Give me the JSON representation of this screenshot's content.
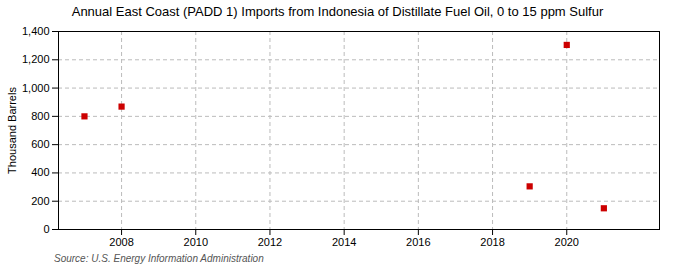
{
  "chart_data": {
    "type": "scatter",
    "title": "Annual East Coast (PADD 1) Imports from Indonesia of Distillate Fuel Oil, 0 to 15 ppm Sulfur",
    "ylabel": "Thousand Barrels",
    "source": "Source: U.S. Energy Information Administration",
    "x": [
      2007,
      2008,
      2019,
      2020,
      2021
    ],
    "values": [
      800,
      869,
      305,
      1305,
      150
    ],
    "color": "#cc0000",
    "marker": "square",
    "xlim": [
      2006.3,
      2022.5
    ],
    "ylim": [
      0,
      1400
    ],
    "xticks": [
      2008,
      2010,
      2012,
      2014,
      2016,
      2018,
      2020
    ],
    "yticks": [
      0,
      200,
      400,
      600,
      800,
      {
        "value": 1000,
        "label": "1,000"
      },
      {
        "value": 1200,
        "label": "1,200"
      },
      {
        "value": 1400,
        "label": "1,400"
      }
    ],
    "grid": true
  }
}
